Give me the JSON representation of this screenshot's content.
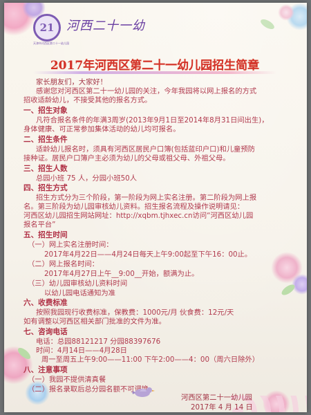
{
  "header": {
    "logo_number": "21",
    "logo_ring_text": "天津市河西区第二十一幼儿园",
    "school_name": "河西二十一幼"
  },
  "title": "2017年河西区第二十一幼儿园招生简章",
  "lines": [
    "家长朋友们，大家好！",
    "感谢您对河西区第二十一幼儿园的关注，今年我园将以网上报名的方式",
    "招收适龄幼儿，不接受其他的报名方式。",
    "一、招生对象",
    "凡符合报名条件的年满3周岁(2013年9月1日至2014年8月31日间出生)，",
    "身体健康、可正常参加集体活动的幼儿均可报名。",
    "二、招生条件",
    "适龄幼儿报名时，须具有河西区居民户口簿(包括蓝印户口)和儿童预防",
    "接种证。居民户口簿户主必须为幼儿的父母或祖父母、外祖父母。",
    "三、招生人数",
    "总园小班 75 人，分园小班50人",
    "四、招生方式",
    "招生方式分为三个阶段，第一阶段为网上实名注册。第二阶段为网上报",
    "名。第三阶段为幼儿园审核幼儿资料。招生报名流程及操作说明请见：",
    "河西区幼儿园招生网站网址：http://xqbm.tjhxec.cn访问“河西区幼儿园",
    "报名平台”",
    "五、招生时间",
    "（一）网上实名注册时间：",
    "2017年4月22日——4月24日每天上午9:00起至下午16：00止。",
    "（二）网上报名时间：",
    "2017年4月27日上午__9:00__开始，额满为止。",
    "（三）幼儿园审核幼儿资料时间",
    "以幼儿园电话通知为准",
    "六、收费标准",
    "按照我园现行收费标准，保教费：1000元/月 伙食费：12元/天",
    "如有调整以河西区相关部门批准的文件为准。",
    "七、咨询电话",
    "电话：总园88121217    分园88397676",
    "时间：4月14日——4月28日",
    "周一至周五上午9:00——11:00 下午2:00——4：00（周六日除外）",
    "八、注意事项",
    "（一）我园不提供清真餐",
    "（二）报名录取后总分园名额不可调换"
  ],
  "footer": {
    "org": "河西区第二十一幼儿园",
    "date": "2017年 4 月 14 日"
  },
  "colors": {
    "title_red": "#d33229",
    "body_text": "#b13a4e",
    "logo_purple": "#7d5bb3"
  }
}
